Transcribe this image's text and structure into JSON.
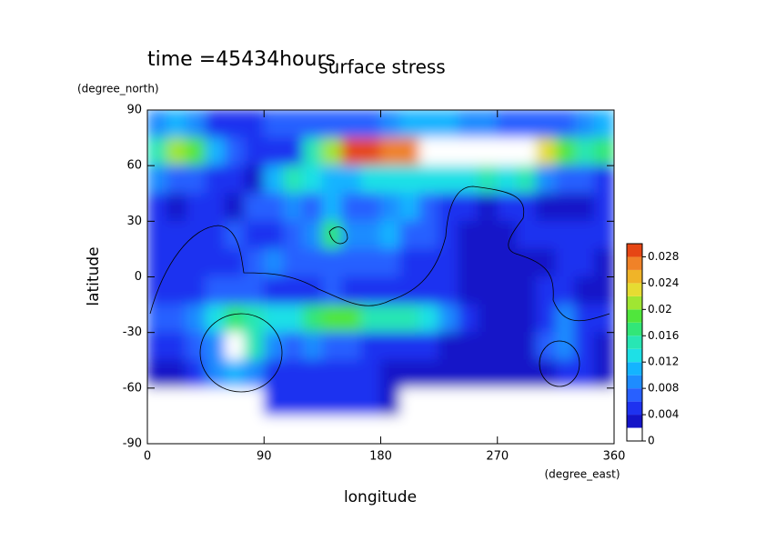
{
  "chart_data": {
    "type": "contour",
    "title": "surface stress",
    "subtitle": "time =45434hours",
    "x_label": "longitude",
    "x_unit": "(degree_east)",
    "y_label": "latitude",
    "y_unit": "(degree_north)",
    "xlim": [
      0,
      360
    ],
    "ylim": [
      -90,
      90
    ],
    "xticks": [
      0,
      90,
      180,
      270,
      360
    ],
    "yticks": [
      -90,
      -60,
      -30,
      0,
      30,
      60,
      90
    ],
    "x": [
      7.5,
      22.5,
      37.5,
      52.5,
      67.5,
      82.5,
      97.5,
      112.5,
      127.5,
      142.5,
      157.5,
      172.5,
      187.5,
      202.5,
      217.5,
      232.5,
      247.5,
      262.5,
      277.5,
      292.5,
      307.5,
      322.5,
      337.5,
      352.5
    ],
    "y": [
      82.5,
      67.5,
      52.5,
      37.5,
      22.5,
      7.5,
      -7.5,
      -22.5,
      -37.5,
      -52.5,
      -67.5,
      -82.5
    ],
    "z": [
      [
        0.008,
        0.01,
        0.008,
        0.004,
        0.004,
        0.004,
        0.006,
        0.006,
        0.006,
        0.006,
        0.006,
        0.006,
        0.008,
        0.01,
        0.01,
        0.01,
        0.008,
        0.008,
        0.006,
        0.006,
        0.006,
        0.006,
        0.008,
        0.01
      ],
      [
        0.014,
        0.02,
        0.018,
        0.01,
        0.006,
        0.004,
        0.004,
        0.004,
        0.014,
        0.02,
        0.028,
        0.028,
        0.026,
        0.026,
        0.03,
        0.03,
        0.03,
        0.03,
        0.03,
        0.03,
        0.022,
        0.018,
        0.014,
        0.016
      ],
      [
        0.008,
        0.006,
        0.006,
        0.004,
        0.004,
        0.002,
        0.01,
        0.014,
        0.012,
        0.01,
        0.01,
        0.012,
        0.012,
        0.012,
        0.012,
        0.012,
        0.012,
        0.014,
        0.012,
        0.014,
        0.008,
        0.006,
        0.006,
        0.004
      ],
      [
        0.004,
        0.002,
        0.004,
        0.004,
        0.002,
        0.006,
        0.006,
        0.008,
        0.006,
        0.01,
        0.006,
        0.006,
        0.008,
        0.01,
        0.006,
        0.004,
        0.004,
        0.002,
        0.004,
        0.004,
        0.002,
        0.002,
        0.002,
        0.004
      ],
      [
        0.004,
        0.004,
        0.004,
        0.004,
        0.006,
        0.004,
        0.004,
        0.006,
        0.008,
        0.016,
        0.008,
        0.008,
        0.01,
        0.006,
        0.006,
        0.004,
        0.002,
        0.002,
        0.002,
        0.004,
        0.004,
        0.004,
        0.004,
        0.004
      ],
      [
        0.004,
        0.004,
        0.004,
        0.004,
        0.004,
        0.006,
        0.008,
        0.006,
        0.006,
        0.006,
        0.006,
        0.006,
        0.006,
        0.004,
        0.004,
        0.004,
        0.002,
        0.002,
        0.002,
        0.002,
        0.002,
        0.004,
        0.004,
        0.002
      ],
      [
        0.004,
        0.004,
        0.004,
        0.006,
        0.006,
        0.006,
        0.004,
        0.004,
        0.004,
        0.006,
        0.004,
        0.004,
        0.004,
        0.004,
        0.004,
        0.004,
        0.002,
        0.002,
        0.002,
        0.002,
        0.004,
        0.004,
        0.002,
        0.002
      ],
      [
        0.006,
        0.006,
        0.008,
        0.012,
        0.016,
        0.014,
        0.012,
        0.012,
        0.016,
        0.018,
        0.018,
        0.014,
        0.014,
        0.014,
        0.012,
        0.008,
        0.004,
        0.002,
        0.002,
        0.002,
        0.004,
        0.008,
        0.004,
        0.004
      ],
      [
        0.004,
        0.004,
        0.006,
        0.008,
        0.03,
        0.014,
        0.008,
        0.006,
        0.008,
        0.006,
        0.006,
        0.004,
        0.004,
        0.004,
        0.004,
        0.002,
        0.002,
        0.002,
        0.002,
        0.002,
        0.006,
        0.008,
        0.004,
        0.002
      ],
      [
        0.002,
        0.002,
        0.004,
        0.008,
        0.01,
        0.008,
        0.004,
        0.004,
        0.004,
        0.004,
        0.004,
        0.004,
        0.002,
        0.002,
        0.002,
        0.002,
        0.002,
        0.002,
        0.002,
        0.002,
        0.002,
        0.004,
        0.004,
        0.002
      ],
      [
        0,
        0,
        0,
        0,
        0,
        0,
        0.004,
        0.004,
        0.004,
        0.004,
        0.004,
        0.004,
        0.002,
        0,
        0,
        0,
        0,
        0,
        0,
        0,
        0,
        0,
        0,
        0
      ],
      [
        0,
        0,
        0,
        0,
        0,
        0,
        0,
        0,
        0,
        0,
        0,
        0,
        0,
        0,
        0,
        0,
        0,
        0,
        0,
        0,
        0,
        0,
        0,
        0
      ]
    ],
    "levels": [
      0,
      0.002,
      0.004,
      0.006,
      0.008,
      0.01,
      0.012,
      0.014,
      0.016,
      0.018,
      0.02,
      0.022,
      0.024,
      0.026,
      0.028,
      0.03
    ],
    "colors": [
      "#ffffff",
      "#1414c8",
      "#1e32f0",
      "#2860ff",
      "#1e8cff",
      "#14b4ff",
      "#1ee0e6",
      "#28e6b4",
      "#32e678",
      "#50e63c",
      "#a0e632",
      "#e6dc32",
      "#f0b428",
      "#f08228",
      "#e64614"
    ],
    "over_color": "#ffffff",
    "colorbar_lim": [
      0,
      0.03
    ],
    "colorbar_ticks": [
      0,
      0.004,
      0.008,
      0.012,
      0.016,
      0.02,
      0.024,
      0.028
    ]
  }
}
